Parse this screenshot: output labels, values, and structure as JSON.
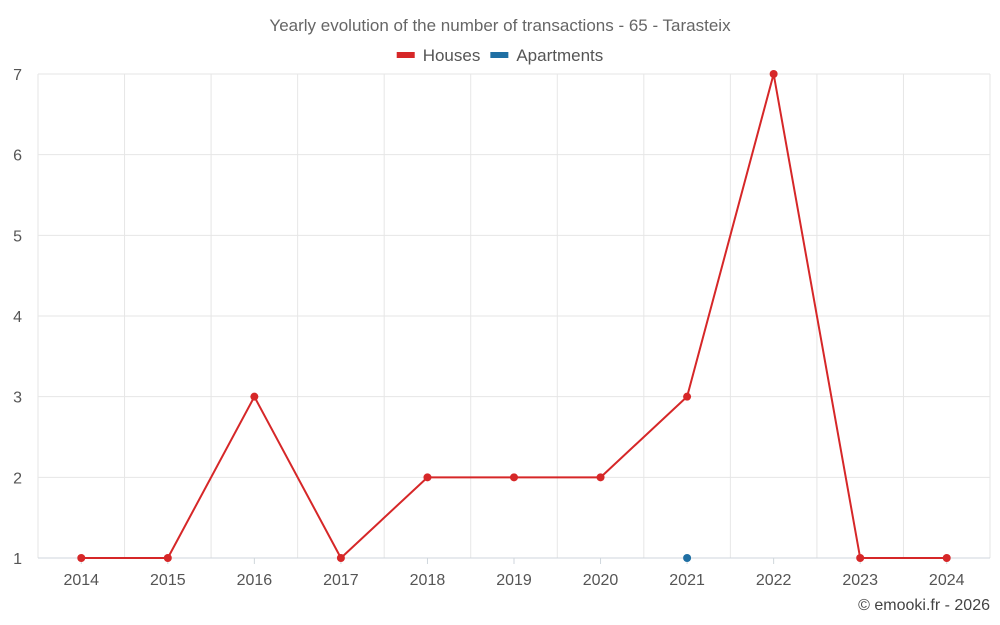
{
  "chart_data": {
    "type": "line",
    "title": "Yearly evolution of the number of transactions - 65 - Tarasteix",
    "x": [
      "2014",
      "2015",
      "2016",
      "2017",
      "2018",
      "2019",
      "2020",
      "2021",
      "2022",
      "2023",
      "2024"
    ],
    "ylim": [
      1,
      7
    ],
    "yticks": [
      1,
      2,
      3,
      4,
      5,
      6,
      7
    ],
    "grid": true,
    "legend_position": "top-center",
    "series": [
      {
        "name": "Houses",
        "color": "#d62728",
        "values": [
          1,
          1,
          3,
          1,
          2,
          2,
          2,
          3,
          7,
          1,
          1
        ]
      },
      {
        "name": "Apartments",
        "color": "#1f6fa3",
        "values": [
          null,
          null,
          null,
          null,
          null,
          null,
          null,
          1,
          null,
          null,
          null
        ]
      }
    ]
  },
  "credit": "© emooki.fr - 2026"
}
